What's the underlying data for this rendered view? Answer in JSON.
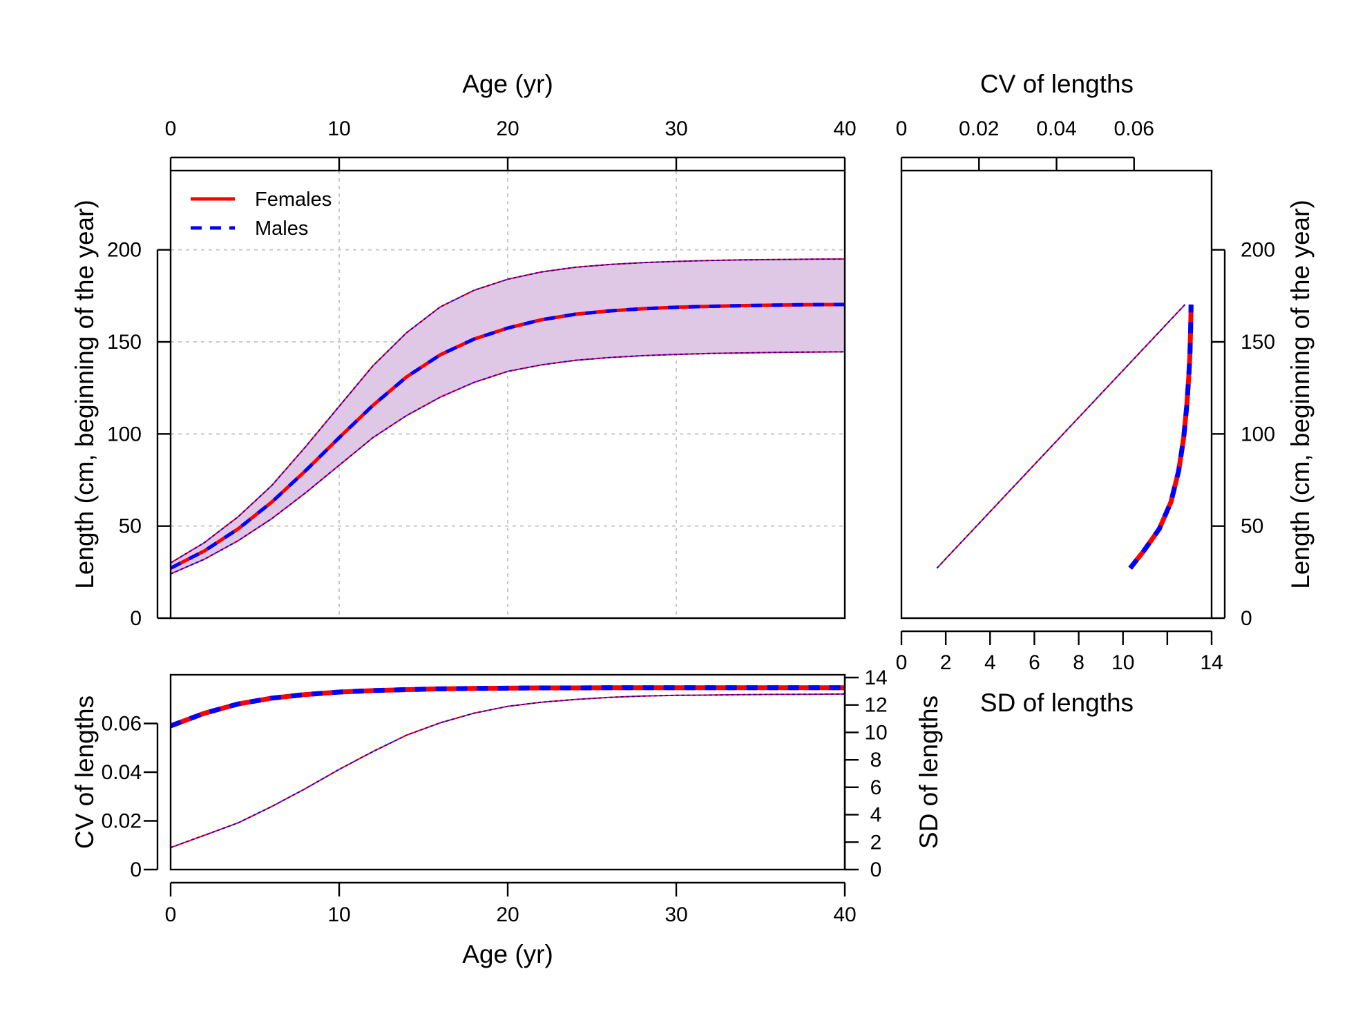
{
  "colors": {
    "females": "#ff0000",
    "males": "#0000ff",
    "band": "#dfc8e6",
    "grid": "#c8c8c8"
  },
  "legend": {
    "position": "top-left",
    "entries": [
      {
        "label": "Females",
        "color": "#ff0000",
        "line": "solid"
      },
      {
        "label": "Males",
        "color": "#0000ff",
        "line": "dashed"
      }
    ]
  },
  "chart_data": [
    {
      "id": "growth",
      "type": "line",
      "xlabel": "Age (yr)",
      "ylabel": "Length (cm, beginning of the year)",
      "xlim": [
        0,
        40
      ],
      "ylim": [
        0,
        240
      ],
      "xticks": [
        "0",
        "10",
        "20",
        "30",
        "40"
      ],
      "yticks": [
        "0",
        "50",
        "100",
        "150",
        "200"
      ],
      "grid": true,
      "x": [
        0,
        2,
        4,
        6,
        8,
        10,
        12,
        14,
        16,
        18,
        20,
        22,
        24,
        26,
        28,
        30,
        32,
        34,
        36,
        38,
        40
      ],
      "series": [
        {
          "name": "Females",
          "values": [
            27.1,
            36.5,
            48.4,
            63.0,
            80.0,
            98.0,
            115.5,
            131.0,
            143.0,
            151.5,
            157.5,
            162.0,
            165.0,
            166.8,
            168.0,
            168.8,
            169.3,
            169.7,
            170.0,
            170.2,
            170.3
          ]
        },
        {
          "name": "Males",
          "values": [
            27.1,
            36.5,
            48.4,
            63.0,
            80.0,
            98.0,
            115.5,
            131.0,
            143.0,
            151.5,
            157.5,
            162.0,
            165.0,
            166.8,
            168.0,
            168.8,
            169.3,
            169.7,
            170.0,
            170.2,
            170.3
          ]
        }
      ],
      "interval": {
        "upper": [
          30.0,
          41.0,
          55.0,
          72.0,
          93.0,
          115.0,
          137.0,
          155.0,
          169.0,
          178.0,
          184.0,
          188.0,
          190.5,
          192.0,
          193.0,
          193.7,
          194.2,
          194.5,
          194.7,
          194.9,
          195.0
        ],
        "lower": [
          24.0,
          32.0,
          42.0,
          54.0,
          68.0,
          83.0,
          98.0,
          110.0,
          120.0,
          128.0,
          134.0,
          137.5,
          140.0,
          141.5,
          142.5,
          143.2,
          143.7,
          144.0,
          144.3,
          144.5,
          144.6
        ]
      }
    },
    {
      "id": "sd-cv-vs-length",
      "type": "line",
      "xlabel": "SD of lengths",
      "x2label": "CV of lengths",
      "ylabel": "Length (cm, beginning of the year)",
      "xlim": [
        0,
        14
      ],
      "x2lim": [
        0,
        0.08
      ],
      "ylim": [
        0,
        240
      ],
      "xticks": [
        "0",
        "2",
        "4",
        "6",
        "8",
        "10",
        "14"
      ],
      "x2ticks": [
        "0",
        "0.02",
        "0.04",
        "0.06"
      ],
      "yticks": [
        "0",
        "50",
        "100",
        "150",
        "200"
      ],
      "cv_series": {
        "cv": [
          0.059,
          0.0625,
          0.0665,
          0.0695,
          0.0715,
          0.0728,
          0.0736,
          0.0741,
          0.0744,
          0.0746,
          0.0747
        ],
        "length": [
          27.1,
          36.5,
          48.4,
          63.0,
          80.0,
          98.0,
          115.5,
          131.0,
          143.0,
          157.5,
          170.3
        ]
      },
      "sd_series": {
        "sd": [
          1.6,
          12.8
        ],
        "length": [
          27.1,
          170.3
        ]
      }
    },
    {
      "id": "cv-sd-vs-age",
      "type": "line",
      "xlabel": "Age (yr)",
      "ylabel": "CV of lengths",
      "y2label": "SD of lengths",
      "xlim": [
        0,
        40
      ],
      "xticks": [
        "0",
        "10",
        "20",
        "30",
        "40"
      ],
      "ylim": [
        0,
        0.08
      ],
      "yticks": [
        "0",
        "0.02",
        "0.04",
        "0.06"
      ],
      "y2lim": [
        0,
        14
      ],
      "y2ticks": [
        "0",
        "2",
        "4",
        "6",
        "8",
        "10",
        "12",
        "14"
      ],
      "x": [
        0,
        2,
        4,
        6,
        8,
        10,
        12,
        14,
        16,
        18,
        20,
        22,
        24,
        26,
        28,
        30,
        32,
        34,
        36,
        38,
        40
      ],
      "cv": [
        0.059,
        0.0642,
        0.068,
        0.0704,
        0.0719,
        0.0729,
        0.0735,
        0.0739,
        0.0742,
        0.0744,
        0.0745,
        0.0746,
        0.0746,
        0.0747,
        0.0747,
        0.0747,
        0.0747,
        0.0747,
        0.0747,
        0.0747,
        0.0747
      ],
      "sd": [
        1.6,
        2.5,
        3.4,
        4.6,
        5.9,
        7.3,
        8.6,
        9.8,
        10.7,
        11.4,
        11.9,
        12.2,
        12.4,
        12.55,
        12.65,
        12.7,
        12.72,
        12.75,
        12.77,
        12.78,
        12.8
      ]
    }
  ]
}
